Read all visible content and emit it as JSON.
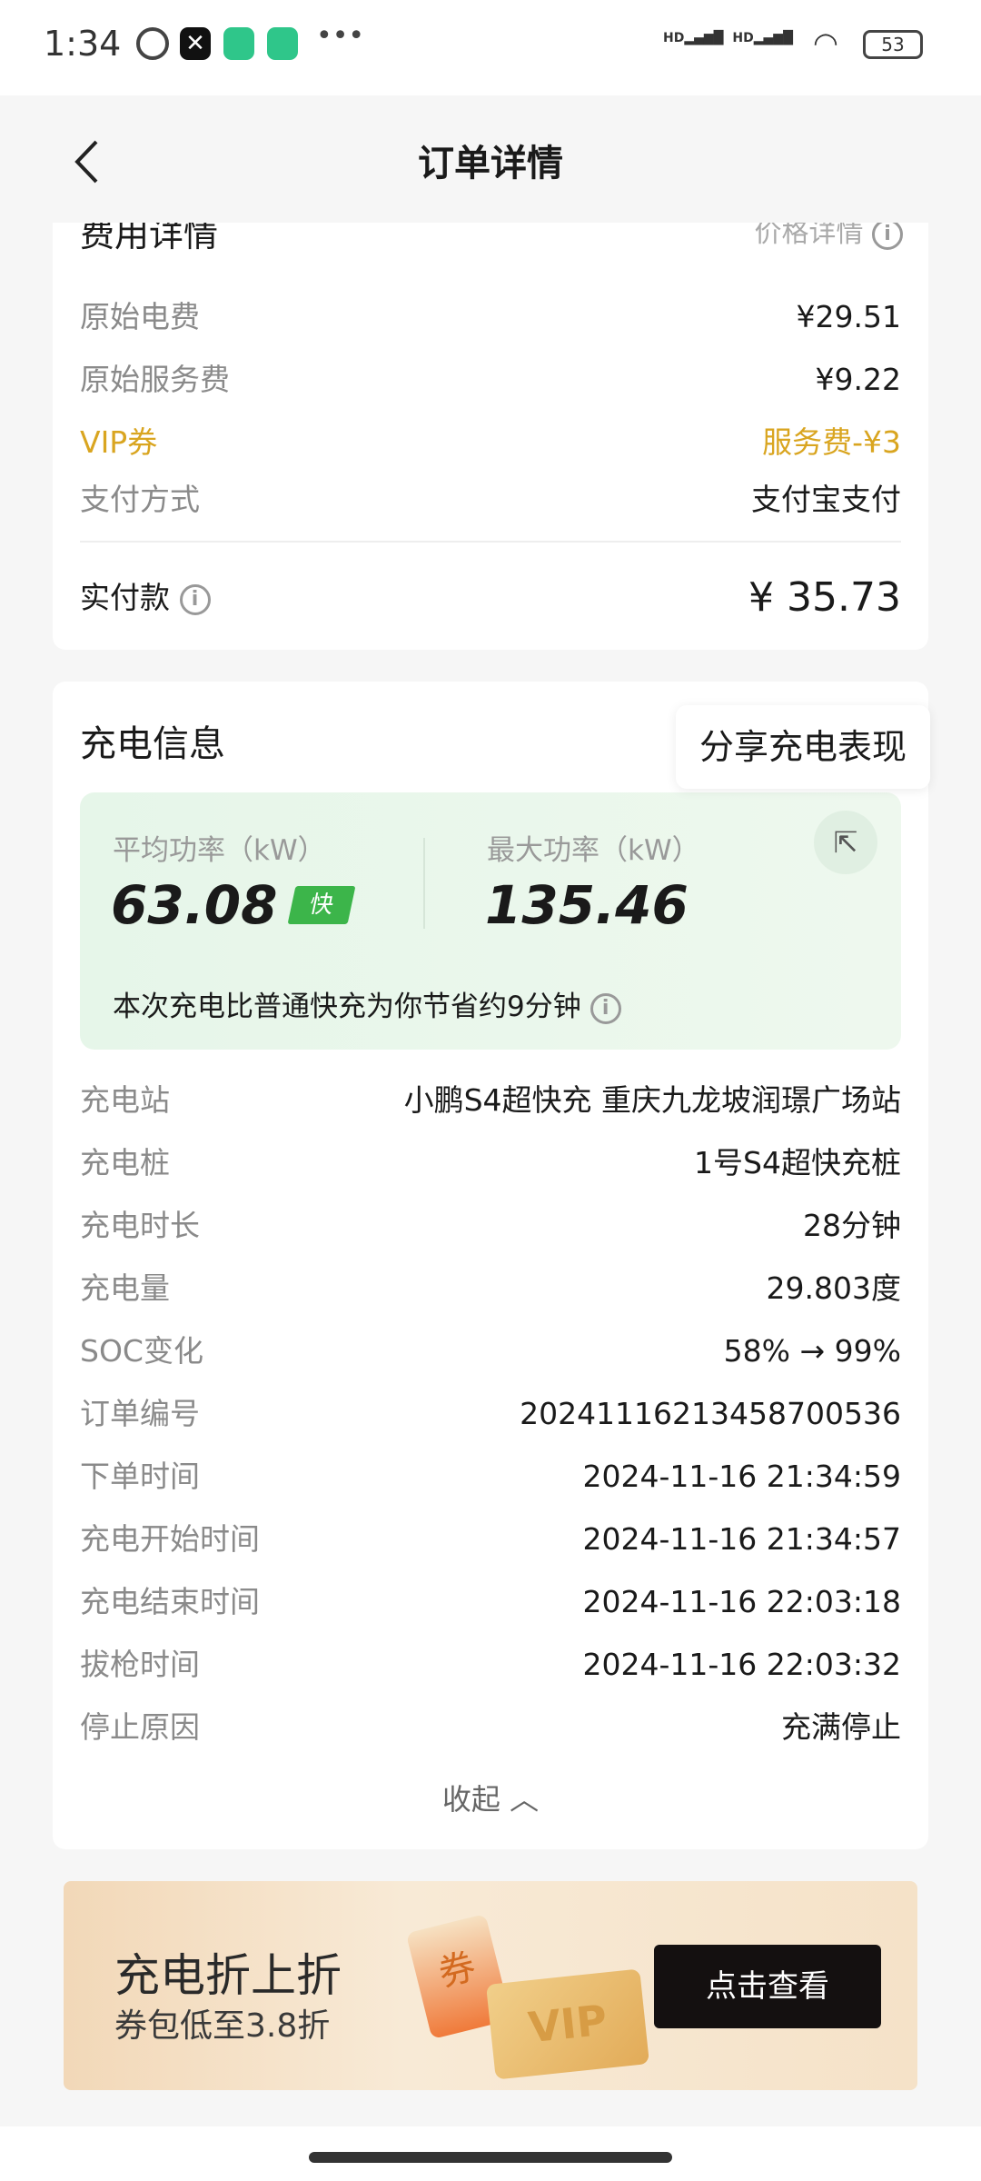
{
  "status_bar": {
    "time": "1:34",
    "battery": "53",
    "signal_labels": [
      "HD",
      "HD"
    ]
  },
  "header": {
    "title": "订单详情"
  },
  "fee_card": {
    "title": "费用详情",
    "price_detail_link": "价格详情",
    "rows": [
      {
        "label": "原始电费",
        "value": "¥29.51"
      },
      {
        "label": "原始服务费",
        "value": "¥9.22"
      },
      {
        "label": "VIP券",
        "value": "服务费-¥3",
        "highlight": true
      },
      {
        "label": "支付方式",
        "value": "支付宝支付"
      }
    ],
    "paid_label": "实付款",
    "paid_value": "¥ 35.73"
  },
  "charge_card": {
    "title": "充电信息",
    "share_tooltip": "分享充电表现",
    "avg_power_label": "平均功率（kW）",
    "avg_power_value": "63.08",
    "fast_badge": "快",
    "max_power_label": "最大功率（kW）",
    "max_power_value": "135.46",
    "saving_text": "本次充电比普通快充为你节省约9分钟",
    "rows": [
      {
        "label": "充电站",
        "value": "小鹏S4超快充 重庆九龙坡润璟广场站"
      },
      {
        "label": "充电桩",
        "value": "1号S4超快充桩"
      },
      {
        "label": "充电时长",
        "value": "28分钟"
      },
      {
        "label": "充电量",
        "value": "29.803度"
      },
      {
        "label": "SOC变化",
        "value": "58% → 99%"
      },
      {
        "label": "订单编号",
        "value": "20241116213458700536"
      },
      {
        "label": "下单时间",
        "value": "2024-11-16 21:34:59"
      },
      {
        "label": "充电开始时间",
        "value": "2024-11-16 21:34:57"
      },
      {
        "label": "充电结束时间",
        "value": "2024-11-16 22:03:18"
      },
      {
        "label": "拔枪时间",
        "value": "2024-11-16 22:03:32"
      },
      {
        "label": "停止原因",
        "value": "充满停止"
      }
    ],
    "collapse_label": "收起"
  },
  "banner": {
    "title": "充电折上折",
    "subtitle": "券包低至3.8折",
    "button": "点击查看",
    "coupon_text": "券",
    "card_text": "VIP"
  },
  "colors": {
    "vip": "#d9a520",
    "fast_badge": "#3cb54a",
    "green_bg": "#e8f6ea"
  }
}
